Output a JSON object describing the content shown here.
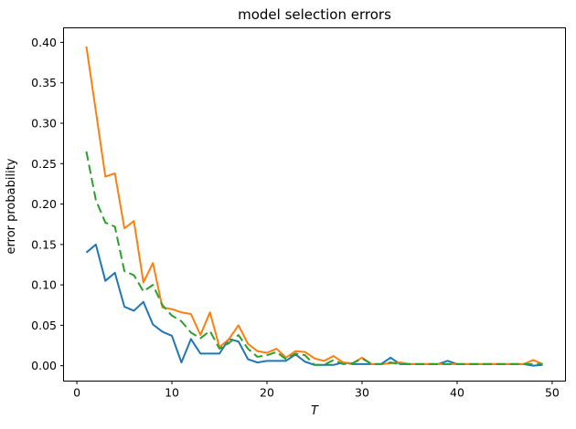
{
  "figure": {
    "title": "model selection errors",
    "xlabel": "T",
    "ylabel": "error probability"
  },
  "colors": {
    "background": "#ffffff",
    "spine": "#000000",
    "text": "#000000"
  },
  "chart_data": {
    "type": "line",
    "title": "model selection errors",
    "xlabel": "T",
    "ylabel": "error probability",
    "grid": false,
    "legend": "none",
    "xlim": [
      -1.4,
      51.4
    ],
    "ylim": [
      -0.019,
      0.418
    ],
    "xticks": [
      0,
      10,
      20,
      30,
      40,
      50
    ],
    "xtick_labels": [
      "0",
      "10",
      "20",
      "30",
      "40",
      "50"
    ],
    "yticks": [
      0.0,
      0.05,
      0.1,
      0.15,
      0.2,
      0.25,
      0.3,
      0.35,
      0.4
    ],
    "ytick_labels": [
      "0.00",
      "0.05",
      "0.10",
      "0.15",
      "0.20",
      "0.25",
      "0.30",
      "0.35",
      "0.40"
    ],
    "x": [
      1,
      2,
      3,
      4,
      5,
      6,
      7,
      8,
      9,
      10,
      11,
      12,
      13,
      14,
      15,
      16,
      17,
      18,
      19,
      20,
      21,
      22,
      23,
      24,
      25,
      26,
      27,
      28,
      29,
      30,
      31,
      32,
      33,
      34,
      35,
      36,
      37,
      38,
      39,
      40,
      41,
      42,
      43,
      44,
      45,
      46,
      47,
      48,
      49
    ],
    "series": [
      {
        "name": "blue-solid",
        "color": "#1f77b4",
        "linestyle": "solid",
        "linewidth": 2,
        "values": [
          0.14,
          0.15,
          0.105,
          0.115,
          0.073,
          0.068,
          0.079,
          0.051,
          0.042,
          0.037,
          0.004,
          0.033,
          0.015,
          0.015,
          0.015,
          0.033,
          0.03,
          0.008,
          0.004,
          0.006,
          0.006,
          0.006,
          0.014,
          0.005,
          0.001,
          0.001,
          0.001,
          0.004,
          0.002,
          0.002,
          0.002,
          0.002,
          0.01,
          0.002,
          0.002,
          0.002,
          0.002,
          0.002,
          0.006,
          0.002,
          0.002,
          0.002,
          0.002,
          0.002,
          0.002,
          0.002,
          0.002,
          0.0,
          0.001
        ]
      },
      {
        "name": "orange-solid",
        "color": "#ff7f0e",
        "linestyle": "solid",
        "linewidth": 2,
        "values": [
          0.395,
          0.315,
          0.234,
          0.238,
          0.17,
          0.179,
          0.103,
          0.127,
          0.072,
          0.07,
          0.066,
          0.064,
          0.038,
          0.066,
          0.023,
          0.033,
          0.05,
          0.027,
          0.018,
          0.016,
          0.021,
          0.01,
          0.018,
          0.017,
          0.009,
          0.006,
          0.012,
          0.004,
          0.003,
          0.01,
          0.002,
          0.002,
          0.003,
          0.004,
          0.002,
          0.002,
          0.002,
          0.002,
          0.002,
          0.002,
          0.002,
          0.002,
          0.002,
          0.002,
          0.002,
          0.002,
          0.002,
          0.007,
          0.002
        ]
      },
      {
        "name": "green-dashed",
        "color": "#2ca02c",
        "linestyle": "dashed",
        "linewidth": 2,
        "values": [
          0.265,
          0.205,
          0.177,
          0.172,
          0.117,
          0.112,
          0.092,
          0.1,
          0.075,
          0.062,
          0.055,
          0.041,
          0.034,
          0.043,
          0.021,
          0.028,
          0.038,
          0.021,
          0.011,
          0.013,
          0.017,
          0.008,
          0.015,
          0.013,
          0.001,
          0.001,
          0.007,
          0.002,
          0.003,
          0.009,
          0.002,
          0.002,
          0.004,
          0.002,
          0.002,
          0.002,
          0.002,
          0.002,
          0.002,
          0.002,
          0.002,
          0.002,
          0.002,
          0.002,
          0.002,
          0.002,
          0.002,
          0.002,
          0.002
        ]
      }
    ]
  }
}
